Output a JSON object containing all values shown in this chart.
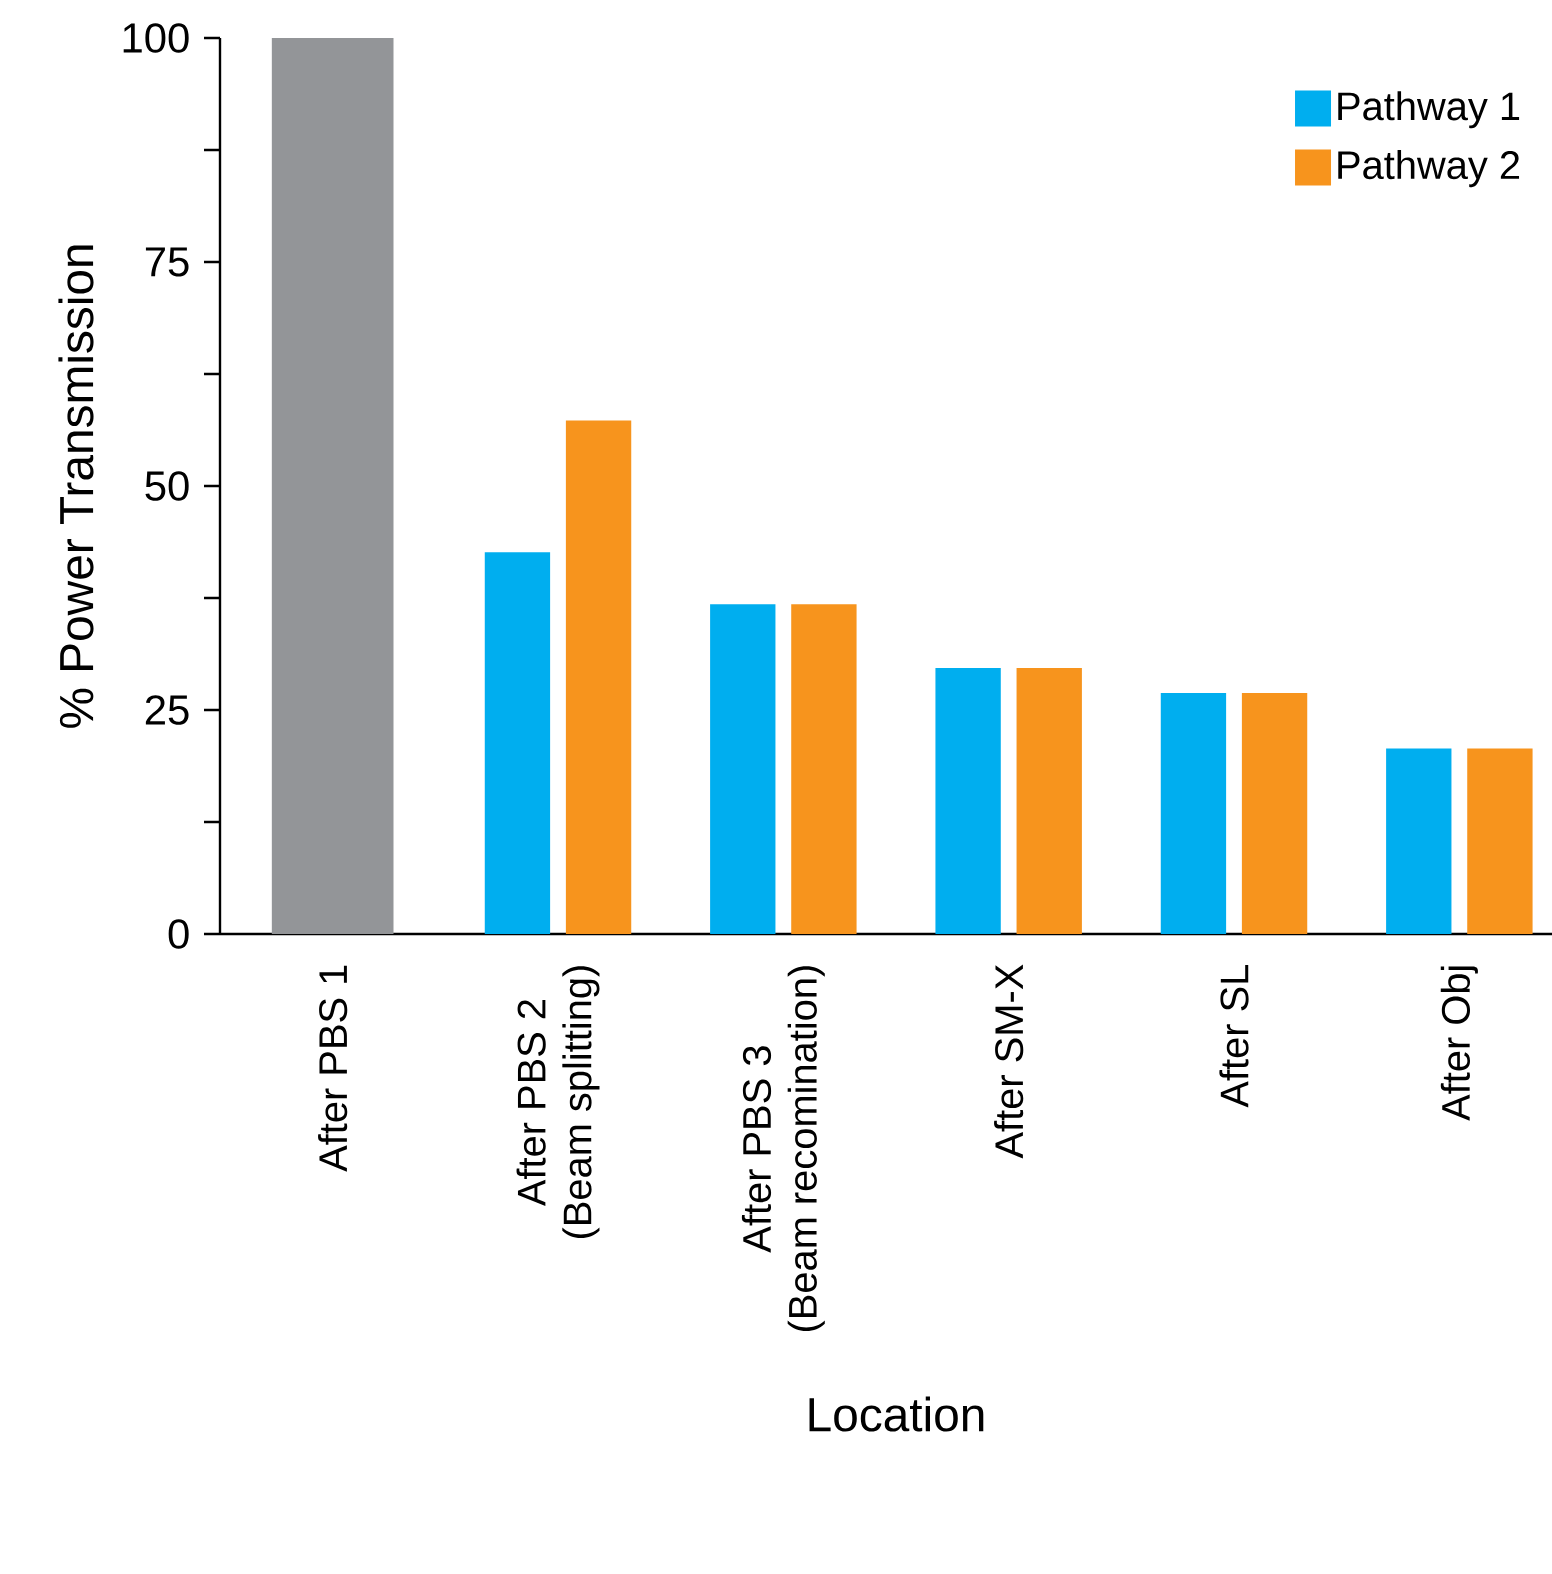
{
  "chart_data": {
    "type": "bar",
    "ylabel": "% Power Transmission",
    "xlabel": "Location",
    "categories": [
      "After PBS 1",
      "After PBS 2\n(Beam splitting)",
      "After PBS 3\n(Beam recomination)",
      "After SM-X",
      "After SL",
      "After Obj"
    ],
    "series": [
      {
        "color": "#939598",
        "values": [
          100,
          null,
          null,
          null,
          null,
          null
        ]
      },
      {
        "name": "Pathway 1",
        "color": "#00aeef",
        "values": [
          null,
          42.6,
          36.8,
          29.7,
          26.9,
          20.7
        ]
      },
      {
        "name": "Pathway 2",
        "color": "#f7941d",
        "values": [
          null,
          57.3,
          36.8,
          29.7,
          26.9,
          20.7
        ]
      }
    ],
    "ylim": [
      0,
      100
    ],
    "yticks": [
      0,
      {
        "value": 12.5,
        "label": null
      },
      25,
      {
        "value": 37.5,
        "label": null
      },
      50,
      {
        "value": 62.5,
        "label": null
      },
      75,
      {
        "value": 87.5,
        "label": null
      },
      100
    ],
    "legend": "top right"
  }
}
